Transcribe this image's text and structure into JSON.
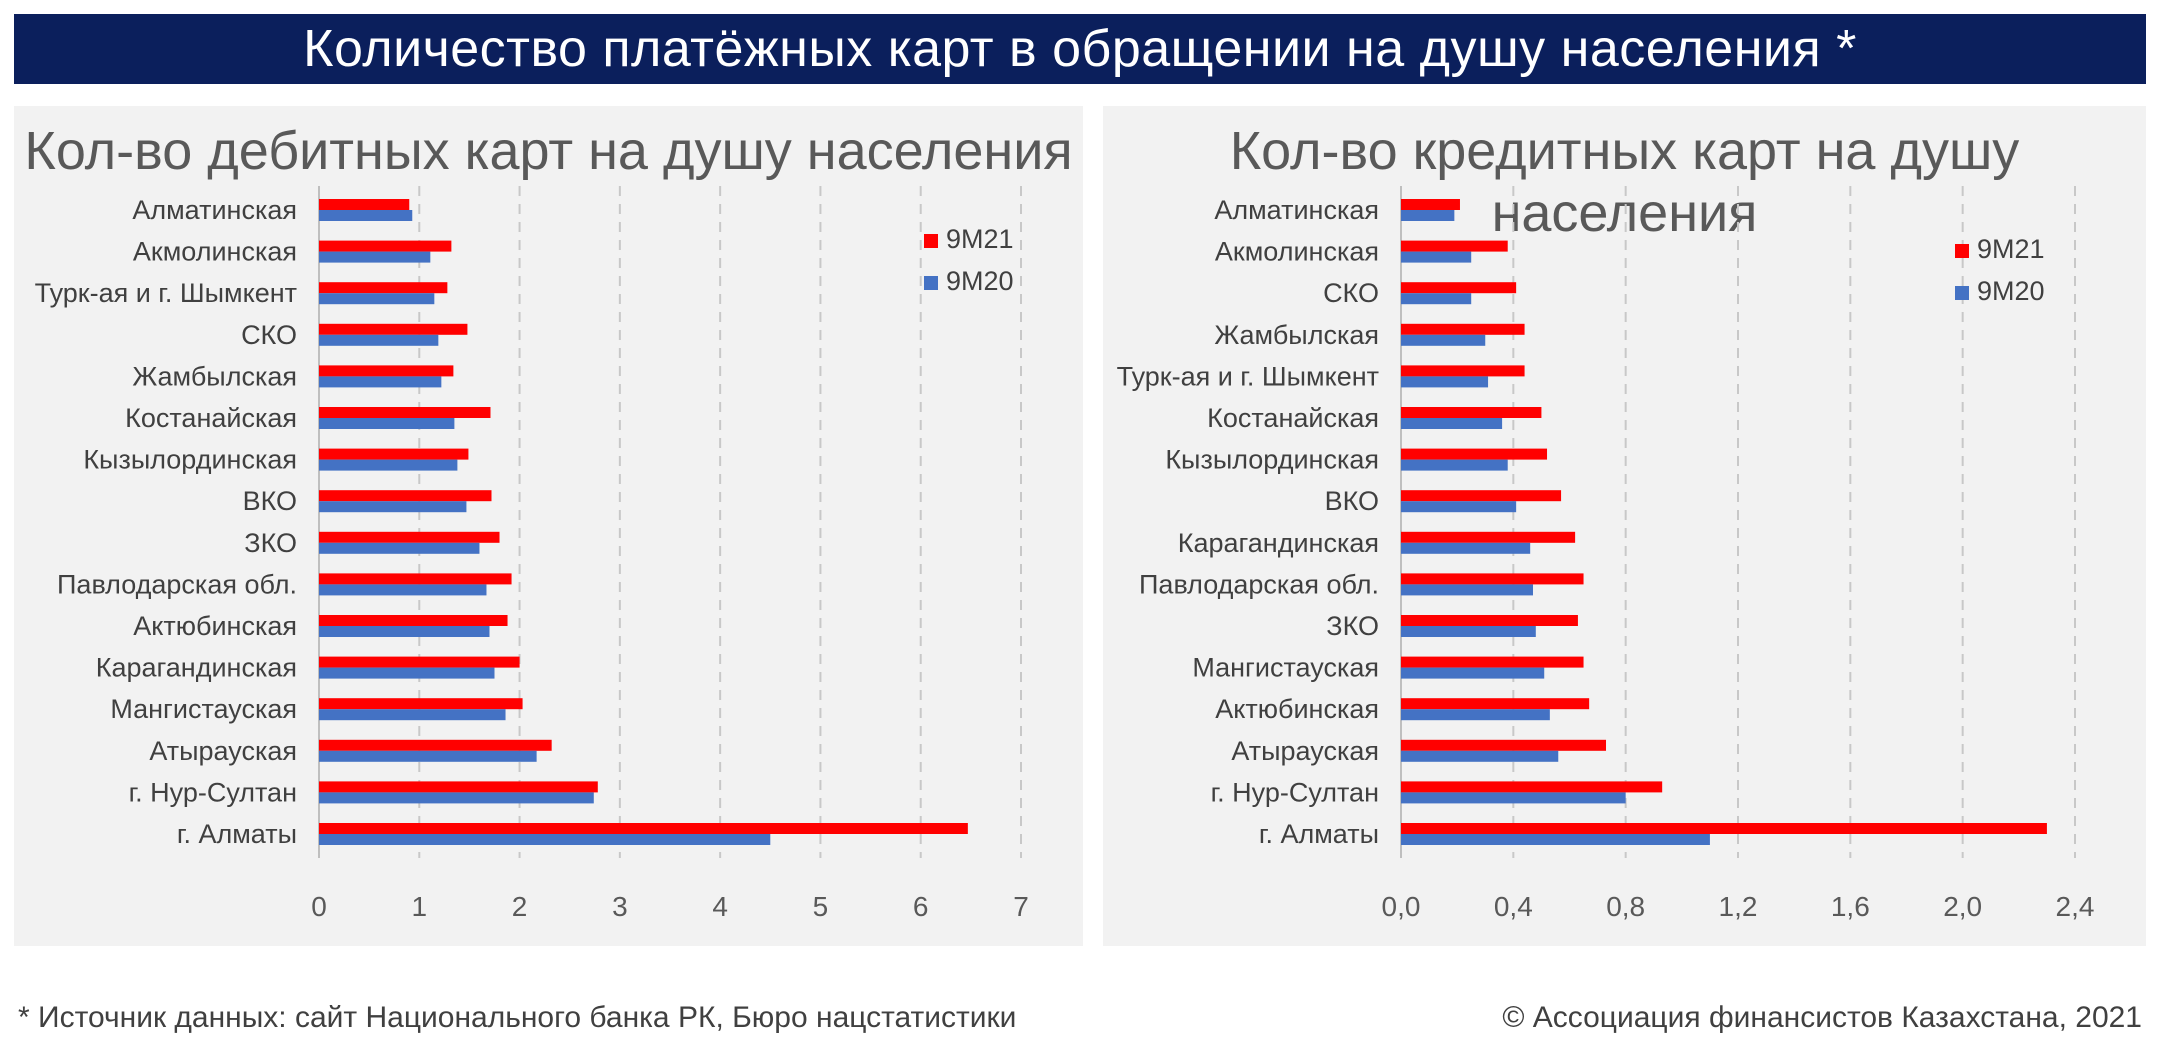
{
  "header": {
    "title": "Количество платёжных карт в обращении на душу населения *"
  },
  "footer": {
    "source": "* Источник данных: сайт Национального банка РК, Бюро нацстатистики",
    "copyright": "© Ассоциация финансистов Казахстана, 2021"
  },
  "colors": {
    "series_9M21": "#ff0000",
    "series_9M20": "#4472c4",
    "banner": "#0b1f5c"
  },
  "chart_data": [
    {
      "type": "bar",
      "orientation": "horizontal",
      "title": "Кол-во дебитных карт на душу населения",
      "categories": [
        "Алматинская",
        "Акмолинская",
        "Турк-ая и г. Шымкент",
        "СКО",
        "Жамбылская",
        "Костанайская",
        "Кызылординская",
        "ВКО",
        "ЗКО",
        "Павлодарская обл.",
        "Актюбинская",
        "Карагандинская",
        "Мангистауская",
        "Атырауская",
        "г. Нур-Султан",
        "г. Алматы"
      ],
      "series": [
        {
          "name": "9M21",
          "color": "#ff0000",
          "values": [
            0.9,
            1.32,
            1.28,
            1.48,
            1.34,
            1.71,
            1.49,
            1.72,
            1.8,
            1.92,
            1.88,
            2.0,
            2.03,
            2.32,
            2.78,
            6.47
          ]
        },
        {
          "name": "9M20",
          "color": "#4472c4",
          "values": [
            0.93,
            1.11,
            1.15,
            1.19,
            1.22,
            1.35,
            1.38,
            1.47,
            1.6,
            1.67,
            1.7,
            1.75,
            1.86,
            2.17,
            2.74,
            4.5
          ]
        }
      ],
      "xlim": [
        0,
        7
      ],
      "xticks": [
        "0",
        "1",
        "2",
        "3",
        "4",
        "5",
        "6",
        "7"
      ],
      "grid": "vertical-dashed",
      "legend": "top-right"
    },
    {
      "type": "bar",
      "orientation": "horizontal",
      "title": "Кол-во кредитных карт на душу населения",
      "categories": [
        "Алматинская",
        "Акмолинская",
        "СКО",
        "Жамбылская",
        "Турк-ая и г. Шымкент",
        "Костанайская",
        "Кызылординская",
        "ВКО",
        "Карагандинская",
        "Павлодарская обл.",
        "ЗКО",
        "Мангистауская",
        "Актюбинская",
        "Атырауская",
        "г. Нур-Султан",
        "г. Алматы"
      ],
      "series": [
        {
          "name": "9M21",
          "color": "#ff0000",
          "values": [
            0.21,
            0.38,
            0.41,
            0.44,
            0.44,
            0.5,
            0.52,
            0.57,
            0.62,
            0.65,
            0.63,
            0.65,
            0.67,
            0.73,
            0.93,
            2.3
          ]
        },
        {
          "name": "9M20",
          "color": "#4472c4",
          "values": [
            0.19,
            0.25,
            0.25,
            0.3,
            0.31,
            0.36,
            0.38,
            0.41,
            0.46,
            0.47,
            0.48,
            0.51,
            0.53,
            0.56,
            0.8,
            1.1
          ]
        }
      ],
      "xlim": [
        0,
        2.4
      ],
      "xticks": [
        "0,0",
        "0,4",
        "0,8",
        "1,2",
        "1,6",
        "2,0",
        "2,4"
      ],
      "grid": "vertical-dashed",
      "legend": "top-right"
    }
  ]
}
